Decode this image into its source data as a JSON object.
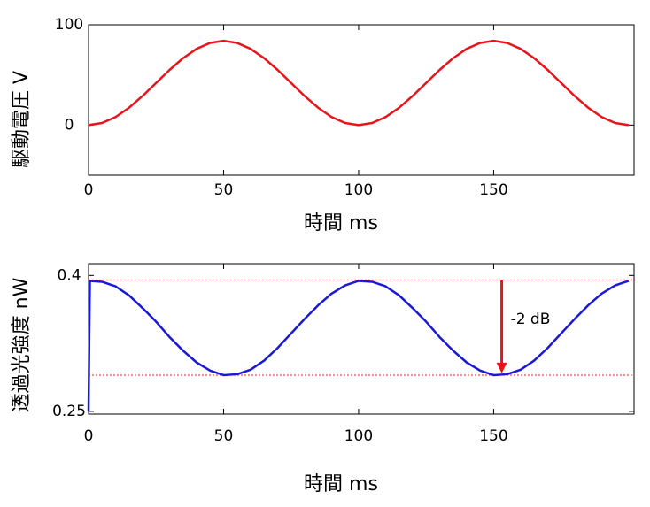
{
  "chart_data": [
    {
      "type": "line",
      "x_label": "時間  ms",
      "y_label": "駆動電圧  V",
      "x": [
        0,
        5,
        10,
        15,
        20,
        25,
        30,
        35,
        40,
        45,
        50,
        55,
        60,
        65,
        70,
        75,
        80,
        85,
        90,
        95,
        100,
        105,
        110,
        115,
        120,
        125,
        130,
        135,
        140,
        145,
        150,
        155,
        160,
        165,
        170,
        175,
        180,
        185,
        190,
        195,
        200
      ],
      "series": [
        {
          "color": "#e8141c",
          "values": [
            0,
            2.06,
            8.02,
            17.3,
            29.0,
            42,
            55.0,
            66.7,
            76.0,
            81.9,
            84,
            81.9,
            76.0,
            66.7,
            55.0,
            42,
            29.0,
            17.3,
            8.02,
            2.06,
            0,
            2.06,
            8.02,
            17.3,
            29.0,
            42,
            55.0,
            66.7,
            76.0,
            81.9,
            84,
            81.9,
            76.0,
            66.7,
            55.0,
            42,
            29.0,
            17.3,
            8.02,
            2.06,
            0
          ]
        }
      ],
      "xlim": [
        0,
        202
      ],
      "ylim": [
        -50,
        100
      ],
      "xticks": [
        0,
        50,
        100,
        150
      ],
      "yticks": [
        0,
        100
      ]
    },
    {
      "type": "line",
      "x_label": "時間  ms",
      "y_label": "透過光強度  nW",
      "x": [
        0,
        0.5,
        5,
        10,
        15,
        20,
        25,
        30,
        35,
        40,
        45,
        50,
        55,
        60,
        65,
        70,
        75,
        80,
        85,
        90,
        95,
        100,
        105,
        110,
        115,
        120,
        125,
        130,
        135,
        140,
        145,
        150,
        155,
        160,
        165,
        170,
        175,
        180,
        185,
        190,
        195,
        200
      ],
      "series": [
        {
          "color": "#1a1ad6",
          "values": [
            0.25,
            0.394,
            0.393,
            0.388,
            0.378,
            0.364,
            0.349,
            0.332,
            0.317,
            0.304,
            0.295,
            0.29,
            0.291,
            0.296,
            0.306,
            0.32,
            0.336,
            0.352,
            0.367,
            0.38,
            0.389,
            0.394,
            0.393,
            0.388,
            0.378,
            0.364,
            0.349,
            0.332,
            0.317,
            0.304,
            0.295,
            0.29,
            0.291,
            0.296,
            0.306,
            0.32,
            0.336,
            0.352,
            0.367,
            0.38,
            0.389,
            0.394
          ]
        }
      ],
      "xlim": [
        0,
        202
      ],
      "ylim": [
        0.247,
        0.413
      ],
      "xticks": [
        0,
        50,
        100,
        150
      ],
      "yticks": [
        0.25,
        0.4
      ],
      "reference_lines": [
        0.395,
        0.29
      ],
      "reference_color": "#e8141c",
      "annotation": {
        "text": "-2 dB",
        "x": 153,
        "y_from": 0.395,
        "y_to": 0.292
      }
    }
  ]
}
